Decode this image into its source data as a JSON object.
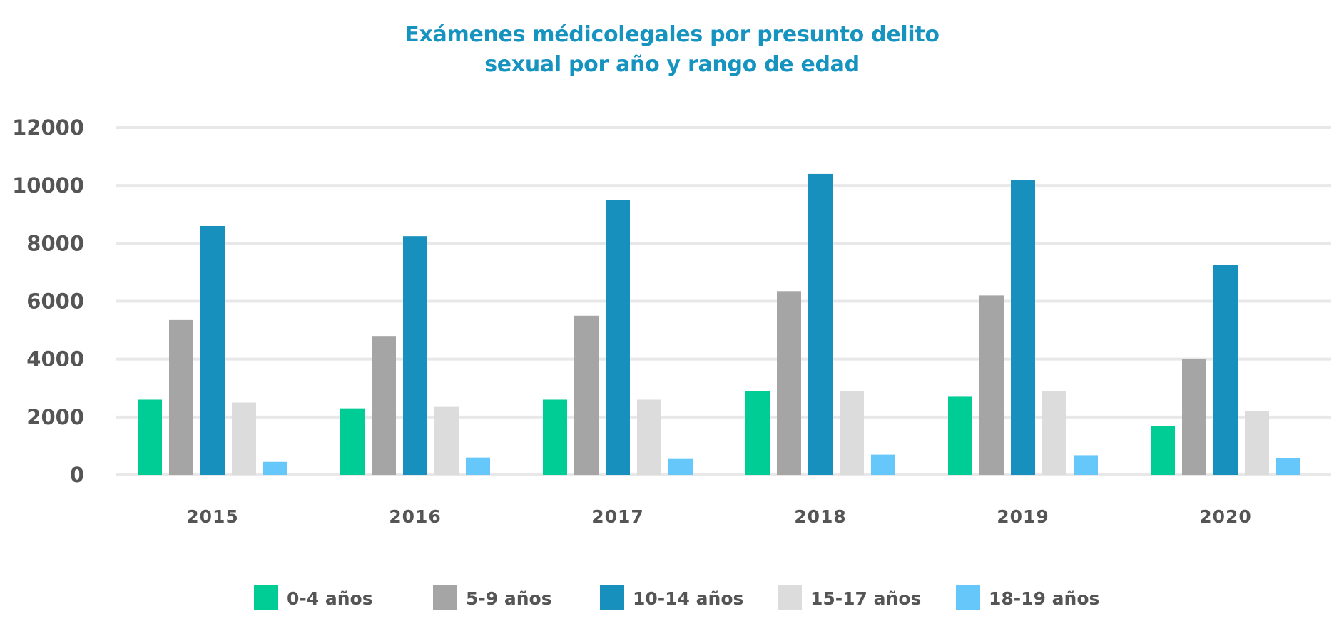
{
  "chart_data": {
    "type": "bar",
    "title_lines": [
      "Exámenes médicolegales por presunto delito",
      "sexual por año y rango de edad"
    ],
    "categories": [
      "2015",
      "2016",
      "2017",
      "2018",
      "2019",
      "2020"
    ],
    "series": [
      {
        "name": "0-4 años",
        "color": "#00cc96",
        "values": [
          2600,
          2300,
          2600,
          2900,
          2700,
          1700
        ]
      },
      {
        "name": "5-9 años",
        "color": "#a5a5a5",
        "values": [
          5350,
          4800,
          5500,
          6350,
          6200,
          4000
        ]
      },
      {
        "name": "10-14 años",
        "color": "#1890bd",
        "values": [
          8600,
          8250,
          9500,
          10400,
          10200,
          7250
        ]
      },
      {
        "name": "15-17 años",
        "color": "#dcdcdc",
        "values": [
          2500,
          2350,
          2600,
          2900,
          2900,
          2200
        ]
      },
      {
        "name": "18-19 años",
        "color": "#66c8fa",
        "values": [
          450,
          600,
          550,
          700,
          680,
          575
        ]
      }
    ],
    "yticks": [
      "0",
      "2000",
      "4000",
      "6000",
      "8000",
      "10000",
      "12000"
    ],
    "ylim": [
      0,
      12000
    ],
    "xlabel": "",
    "ylabel": "",
    "grid": true,
    "legend_position": "bottom"
  }
}
